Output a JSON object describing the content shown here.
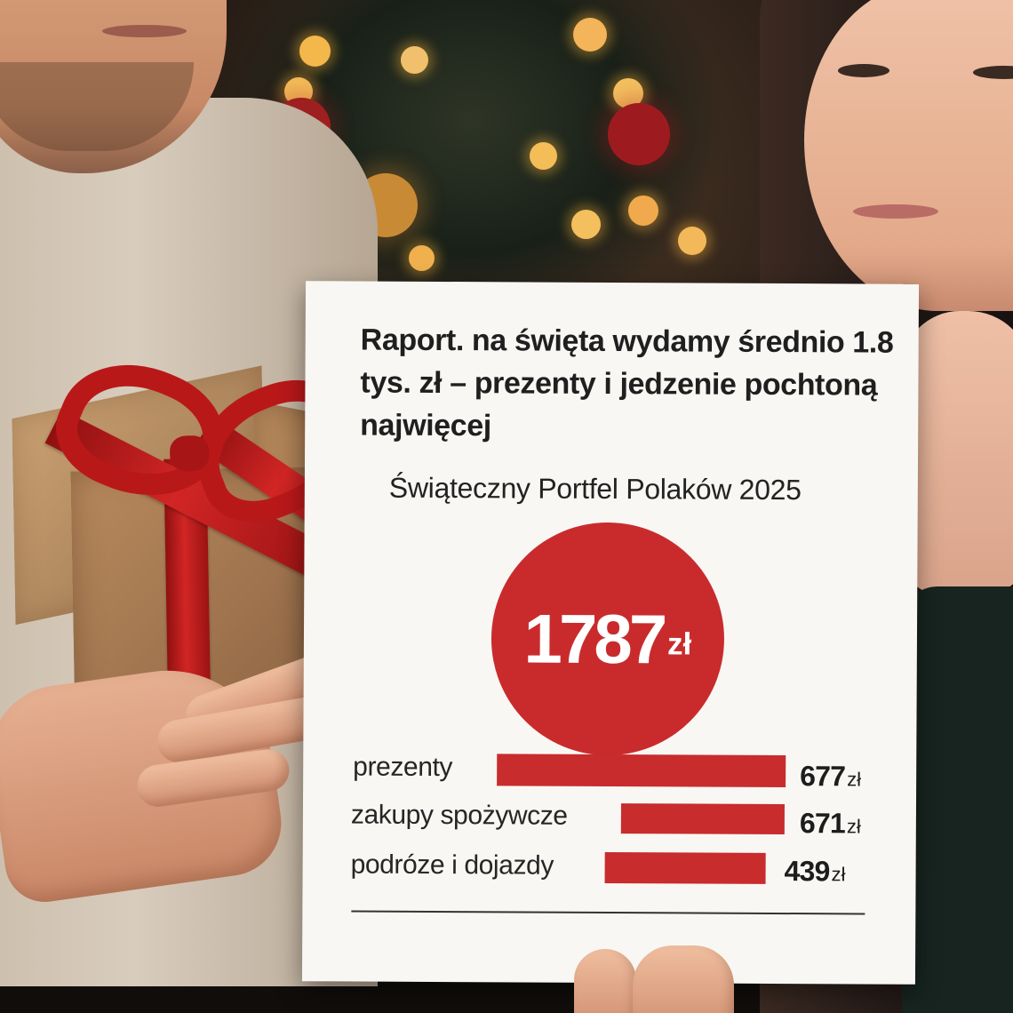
{
  "poster": {
    "title": "Raport. na święta wydamy średnio 1.8 tys. zł – prezenty i jedzenie pochtoną najwięcej",
    "subtitle": "Świąteczny Portfel Polaków 2025",
    "total": {
      "value": "1787",
      "unit": "zł"
    },
    "rows": [
      {
        "label": "prezenty",
        "value": "677",
        "unit": "zł"
      },
      {
        "label": "zakupy spożywcze",
        "value": "671",
        "unit": "zł"
      },
      {
        "label": "podróze i dojazdy",
        "value": "439",
        "unit": "zł"
      }
    ]
  },
  "colors": {
    "accent": "#c92b2d",
    "paper": "#f8f7f4",
    "text": "#1f1f1f"
  }
}
